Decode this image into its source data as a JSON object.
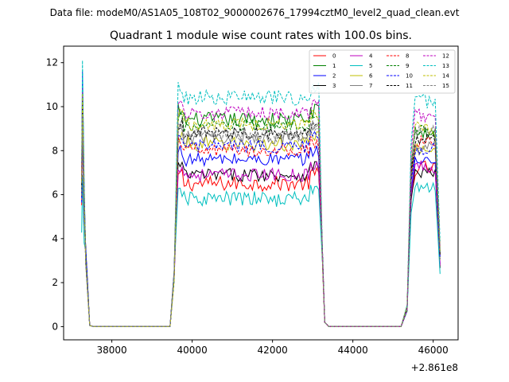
{
  "suptitle": "Data file: modeM0/AS1A05_108T02_9000002676_17994cztM0_level2_quad_clean.evt",
  "chart_data": {
    "type": "line",
    "title": "Quadrant 1 module wise count rates with 100.0s bins.",
    "xlabel": "",
    "ylabel": "",
    "x_offset_label": "+2.861e8",
    "xlim": [
      36800,
      46620
    ],
    "ylim": [
      -0.6,
      12.75
    ],
    "xticks": [
      38000,
      40000,
      42000,
      44000,
      46000
    ],
    "xtick_labels": [
      "38000",
      "40000",
      "42000",
      "44000",
      "46000"
    ],
    "yticks": [
      0,
      2,
      4,
      6,
      8,
      10,
      12
    ],
    "ytick_labels": [
      "0",
      "2",
      "4",
      "6",
      "8",
      "10",
      "12"
    ],
    "grid": false,
    "legend_position": "top-right",
    "legend_ncol": 4,
    "segments": [
      {
        "start": 37250,
        "end": 37350,
        "type": "decay"
      },
      {
        "start": 37350,
        "end": 37450,
        "type": "step",
        "value": 3.2
      },
      {
        "start": 37450,
        "end": 39450,
        "type": "zero"
      },
      {
        "start": 39450,
        "end": 39550,
        "type": "step",
        "value": 2.0
      },
      {
        "start": 39550,
        "end": 43150,
        "type": "plateau"
      },
      {
        "start": 43150,
        "end": 43250,
        "type": "step",
        "value": 2.5
      },
      {
        "start": 43250,
        "end": 45250,
        "type": "zero"
      },
      {
        "start": 45250,
        "end": 45350,
        "type": "step",
        "value": 0.7
      },
      {
        "start": 45350,
        "end": 46150,
        "type": "plateau2"
      },
      {
        "start": 46150,
        "end": 46151,
        "type": "end"
      }
    ],
    "series": [
      {
        "name": "0",
        "color": "#ff0000",
        "dash": "solid",
        "level": 6.5,
        "level2": 7.2,
        "noise": 0.35,
        "start": 10.5
      },
      {
        "name": "1",
        "color": "#008000",
        "dash": "solid",
        "level": 9.4,
        "level2": 8.8,
        "noise": 0.35,
        "start": 11.0
      },
      {
        "name": "2",
        "color": "#0000ff",
        "dash": "solid",
        "level": 7.6,
        "level2": 7.5,
        "noise": 0.3,
        "start": 11.6
      },
      {
        "name": "3",
        "color": "#000000",
        "dash": "solid",
        "level": 6.9,
        "level2": 7.0,
        "noise": 0.3,
        "start": 9.5
      },
      {
        "name": "4",
        "color": "#bf00bf",
        "dash": "solid",
        "level": 6.9,
        "level2": 7.3,
        "noise": 0.3,
        "start": 10.8
      },
      {
        "name": "5",
        "color": "#00bfbf",
        "dash": "solid",
        "level": 5.8,
        "level2": 6.3,
        "noise": 0.35,
        "start": 6.9
      },
      {
        "name": "6",
        "color": "#bfbf00",
        "dash": "solid",
        "level": 8.3,
        "level2": 8.0,
        "noise": 0.35,
        "start": 10.2
      },
      {
        "name": "7",
        "color": "#808080",
        "dash": "solid",
        "level": 8.6,
        "level2": 8.3,
        "noise": 0.3,
        "start": 9.8
      },
      {
        "name": "8",
        "color": "#ff0000",
        "dash": "dashed",
        "level": 8.0,
        "level2": 8.4,
        "noise": 0.3,
        "start": 8.9
      },
      {
        "name": "9",
        "color": "#008000",
        "dash": "dashed",
        "level": 9.1,
        "level2": 9.0,
        "noise": 0.3,
        "start": 10.0
      },
      {
        "name": "10",
        "color": "#0000ff",
        "dash": "dashed",
        "level": 8.2,
        "level2": 8.1,
        "noise": 0.3,
        "start": 9.1
      },
      {
        "name": "11",
        "color": "#000000",
        "dash": "dashed",
        "level": 8.8,
        "level2": 8.6,
        "noise": 0.3,
        "start": 10.4
      },
      {
        "name": "12",
        "color": "#bf00bf",
        "dash": "dashed",
        "level": 9.7,
        "level2": 9.6,
        "noise": 0.3,
        "start": 10.9
      },
      {
        "name": "13",
        "color": "#00bfbf",
        "dash": "dashed",
        "level": 10.4,
        "level2": 10.2,
        "noise": 0.35,
        "start": 12.1
      },
      {
        "name": "14",
        "color": "#bfbf00",
        "dash": "dashed",
        "level": 9.2,
        "level2": 9.0,
        "noise": 0.3,
        "start": 10.6
      },
      {
        "name": "15",
        "color": "#808080",
        "dash": "dashed",
        "level": 8.7,
        "level2": 8.9,
        "noise": 0.3,
        "start": 9.6
      }
    ]
  }
}
